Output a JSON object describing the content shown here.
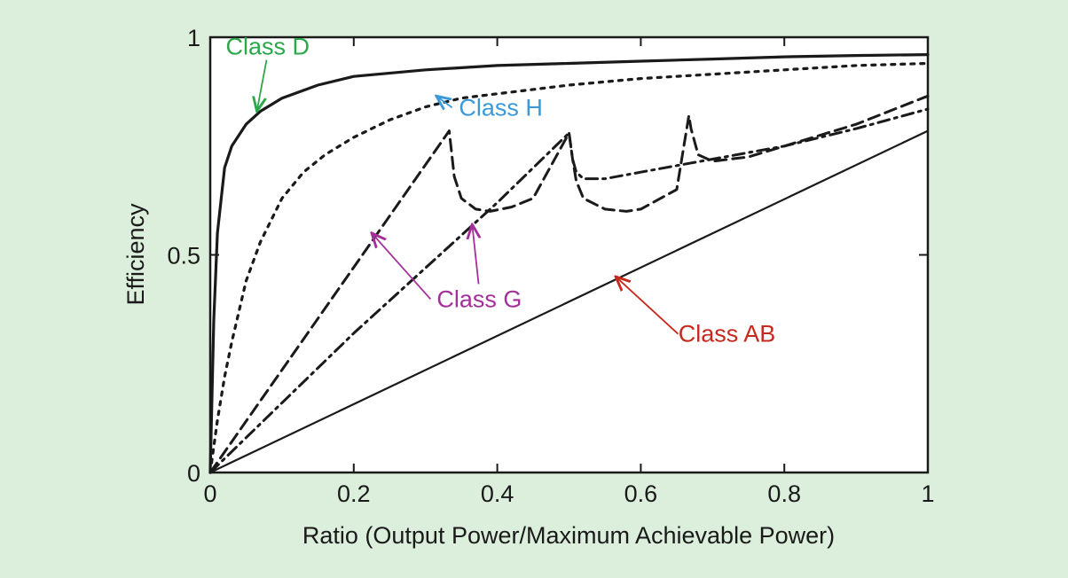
{
  "chart_data": {
    "type": "line",
    "xlabel": "Ratio (Output Power/Maximum Achievable Power)",
    "ylabel": "Efficiency",
    "xlim": [
      0,
      1
    ],
    "ylim": [
      0,
      1
    ],
    "x_ticks": [
      0,
      0.2,
      0.4,
      0.6,
      0.8,
      1
    ],
    "y_ticks": [
      0,
      0.5,
      1
    ],
    "x_tick_labels": [
      "0",
      "0.2",
      "0.4",
      "0.6",
      "0.8",
      "1"
    ],
    "y_tick_labels": [
      "0",
      "0.5",
      "1"
    ],
    "grid": false,
    "legend": "none",
    "series": [
      {
        "name": "Class D",
        "style": "solid",
        "x": [
          0,
          0.005,
          0.01,
          0.02,
          0.03,
          0.05,
          0.07,
          0.1,
          0.15,
          0.2,
          0.3,
          0.4,
          0.5,
          0.6,
          0.7,
          0.8,
          0.9,
          1.0
        ],
        "y": [
          0,
          0.35,
          0.55,
          0.7,
          0.75,
          0.8,
          0.83,
          0.86,
          0.89,
          0.91,
          0.925,
          0.935,
          0.94,
          0.945,
          0.95,
          0.955,
          0.958,
          0.96
        ]
      },
      {
        "name": "Class H",
        "style": "dotted",
        "x": [
          0,
          0.01,
          0.02,
          0.03,
          0.05,
          0.07,
          0.1,
          0.13,
          0.16,
          0.2,
          0.25,
          0.3,
          0.35,
          0.4,
          0.5,
          0.6,
          0.7,
          0.8,
          0.9,
          1.0
        ],
        "y": [
          0,
          0.12,
          0.22,
          0.3,
          0.44,
          0.53,
          0.63,
          0.69,
          0.73,
          0.77,
          0.81,
          0.84,
          0.86,
          0.87,
          0.89,
          0.905,
          0.915,
          0.925,
          0.935,
          0.94
        ]
      },
      {
        "name": "Class G",
        "style": "dashed",
        "x": [
          0,
          0.333,
          0.34,
          0.35,
          0.37,
          0.39,
          0.42,
          0.45,
          0.5,
          0.505,
          0.51,
          0.52,
          0.55,
          0.58,
          0.6,
          0.65,
          0.667,
          0.67,
          0.68,
          0.7,
          0.75,
          0.8,
          0.9,
          1.0
        ],
        "y": [
          0,
          0.785,
          0.68,
          0.63,
          0.605,
          0.6,
          0.61,
          0.63,
          0.78,
          0.72,
          0.67,
          0.63,
          0.605,
          0.6,
          0.605,
          0.65,
          0.82,
          0.79,
          0.73,
          0.715,
          0.725,
          0.75,
          0.8,
          0.865
        ]
      },
      {
        "name": "Class G",
        "style": "dash-dot",
        "x": [
          0,
          0.1,
          0.2,
          0.3,
          0.4,
          0.5,
          0.505,
          0.51,
          0.52,
          0.55,
          0.6,
          0.65,
          0.7,
          0.75,
          0.8,
          0.9,
          1.0
        ],
        "y": [
          0,
          0.16,
          0.32,
          0.47,
          0.62,
          0.78,
          0.72,
          0.69,
          0.675,
          0.675,
          0.69,
          0.705,
          0.72,
          0.735,
          0.75,
          0.79,
          0.835
        ]
      },
      {
        "name": "Class AB",
        "style": "solid-thin",
        "x": [
          0,
          1.0
        ],
        "y": [
          0,
          0.785
        ]
      }
    ],
    "annotations": [
      {
        "text": "Class D",
        "color": "#2aa84a",
        "x": 0.08,
        "y": 0.96,
        "target": [
          0.065,
          0.83
        ]
      },
      {
        "text": "Class H",
        "color": "#3a9ad9",
        "x": 0.405,
        "y": 0.82,
        "target": [
          0.315,
          0.865
        ]
      },
      {
        "text": "Class G",
        "color": "#a3309a",
        "x": 0.375,
        "y": 0.38,
        "targets": [
          [
            0.225,
            0.55
          ],
          [
            0.365,
            0.57
          ]
        ]
      },
      {
        "text": "Class AB",
        "color": "#c62a1e",
        "x": 0.72,
        "y": 0.3,
        "target": [
          0.565,
          0.45
        ]
      }
    ]
  }
}
